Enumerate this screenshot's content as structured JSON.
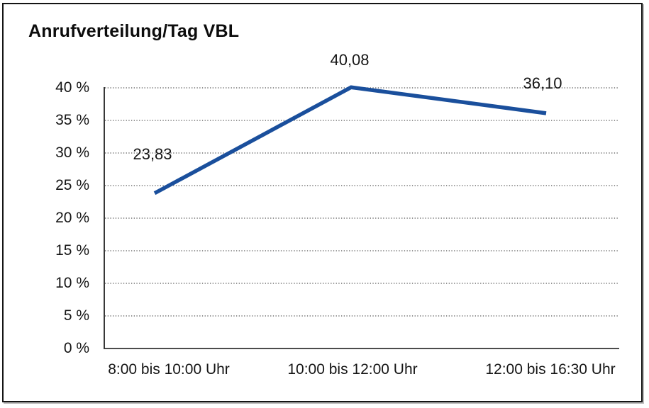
{
  "title": "Anrufverteilung/Tag VBL",
  "chart_data": {
    "type": "line",
    "title": "Anrufverteilung/Tag VBL",
    "categories": [
      "8:00 bis 10:00 Uhr",
      "10:00 bis 12:00 Uhr",
      "12:00 bis 16:30 Uhr"
    ],
    "series": [
      {
        "name": "Anrufverteilung",
        "values": [
          23.83,
          40.08,
          36.1
        ]
      }
    ],
    "value_labels": [
      "23,83",
      "40,08",
      "36,10"
    ],
    "xlabel": "",
    "ylabel": "",
    "ylim": [
      0,
      40
    ],
    "ytick_step": 5,
    "ytick_labels": [
      "0 %",
      "5 %",
      "10 %",
      "15 %",
      "20 %",
      "25 %",
      "30 %",
      "35 %",
      "40 %"
    ],
    "grid": "horizontal-dotted",
    "legend": "none",
    "colors": {
      "line": "#1A4F9C",
      "grid": "#555555",
      "axis": "#333333",
      "text": "#151515"
    },
    "markers": "none"
  }
}
